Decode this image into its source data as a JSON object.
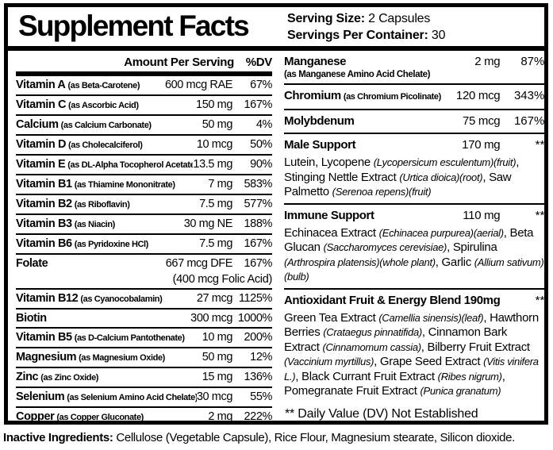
{
  "header": {
    "title": "Supplement Facts",
    "serving_size_label": "Serving Size:",
    "serving_size_value": " 2 Capsules",
    "servings_label": "Servings Per Container:",
    "servings_value": " 30"
  },
  "left_column": {
    "amount_header": "Amount Per Serving",
    "dv_header": "%DV",
    "rows": [
      {
        "name": "Vitamin A",
        "form": "(as Beta-Carotene)",
        "amount": "600 mcg RAE",
        "dv": "67%"
      },
      {
        "name": "Vitamin C",
        "form": "(as Ascorbic Acid)",
        "amount": "150 mg",
        "dv": "167%"
      },
      {
        "name": "Calcium",
        "form": "(as Calcium Carbonate)",
        "amount": "50 mg",
        "dv": "4%"
      },
      {
        "name": "Vitamin D",
        "form": "(as Cholecalciferol)",
        "amount": "10 mcg",
        "dv": "50%"
      },
      {
        "name": "Vitamin E",
        "form": "(as DL-Alpha Tocopherol Acetate)",
        "amount": "13.5 mg",
        "dv": "90%"
      },
      {
        "name": "Vitamin B1",
        "form": "(as Thiamine Mononitrate)",
        "amount": "7 mg",
        "dv": "583%"
      },
      {
        "name": "Vitamin B2",
        "form": "(as Riboflavin)",
        "amount": "7.5 mg",
        "dv": "577%"
      },
      {
        "name": "Vitamin B3",
        "form": "(as Niacin)",
        "amount": "30 mg NE",
        "dv": "188%"
      },
      {
        "name": "Vitamin B6",
        "form": "(as Pyridoxine HCl)",
        "amount": "7.5 mg",
        "dv": "167%"
      },
      {
        "name": "Folate",
        "form": "",
        "amount": "667 mcg DFE",
        "dv": "167%",
        "amount_note": "(400 mcg Folic Acid)"
      },
      {
        "name": "Vitamin B12",
        "form": "(as Cyanocobalamin)",
        "amount": "27 mcg",
        "dv": "1125%"
      },
      {
        "name": "Biotin",
        "form": "",
        "amount": "300 mcg",
        "dv": "1000%"
      },
      {
        "name": "Vitamin B5",
        "form": "(as D-Calcium Pantothenate)",
        "amount": "10 mg",
        "dv": "200%"
      },
      {
        "name": "Magnesium",
        "form": "(as Magnesium Oxide)",
        "amount": "50 mg",
        "dv": "12%"
      },
      {
        "name": "Zinc",
        "form": "(as Zinc Oxide)",
        "amount": "15 mg",
        "dv": "136%"
      },
      {
        "name": "Selenium",
        "form": "(as Selenium Amino Acid Chelate)",
        "amount": "30 mcg",
        "dv": "55%"
      },
      {
        "name": "Copper",
        "form": "(as Copper Gluconate)",
        "amount": "2 mg",
        "dv": "222%"
      }
    ]
  },
  "right_column": {
    "rows": [
      {
        "name": "Manganese",
        "form": "",
        "sub": "(as Manganese Amino Acid Chelate)",
        "amount": "2 mg",
        "dv": "87%"
      },
      {
        "name": "Chromium",
        "form": "(as Chromium Picolinate)",
        "amount": "120 mcg",
        "dv": "343%"
      },
      {
        "name": "Molybdenum",
        "form": "",
        "amount": "75 mcg",
        "dv": "167%"
      },
      {
        "name": "Male Support",
        "form": "",
        "amount": "170 mg",
        "dv": "**",
        "ingredients": [
          {
            "text": "Lutein, Lycopene ",
            "italic": false
          },
          {
            "text": "(Lycopersicum esculentum)(fruit)",
            "italic": true
          },
          {
            "text": ", Stinging Nettle Extract ",
            "italic": false
          },
          {
            "text": "(Urtica dioica)(root)",
            "italic": true
          },
          {
            "text": ", Saw Palmetto ",
            "italic": false
          },
          {
            "text": "(Serenoa repens)(fruit)",
            "italic": true
          }
        ]
      },
      {
        "name": "Immune Support",
        "form": "",
        "amount": "110 mg",
        "dv": "**",
        "ingredients": [
          {
            "text": "Echinacea Extract ",
            "italic": false
          },
          {
            "text": "(Echinacea purpurea)(aerial)",
            "italic": true
          },
          {
            "text": ", Beta Glucan ",
            "italic": false
          },
          {
            "text": "(Saccharomyces cerevisiae)",
            "italic": true
          },
          {
            "text": ", Spirulina ",
            "italic": false
          },
          {
            "text": "(Arthrospira platensis)(whole plant)",
            "italic": true
          },
          {
            "text": ", Garlic ",
            "italic": false
          },
          {
            "text": "(Allium sativum)(bulb)",
            "italic": true
          }
        ]
      },
      {
        "name": "Antioxidant Fruit & Energy Blend 190mg",
        "form": "",
        "amount": "",
        "dv": "**",
        "ingredients": [
          {
            "text": "Green Tea Extract ",
            "italic": false
          },
          {
            "text": "(Camellia sinensis)(leaf)",
            "italic": true
          },
          {
            "text": ", Hawthorn Berries ",
            "italic": false
          },
          {
            "text": "(Crataegus pinnatifida)",
            "italic": true
          },
          {
            "text": ", Cinnamon Bark Extract ",
            "italic": false
          },
          {
            "text": "(Cinnamomum cassia)",
            "italic": true
          },
          {
            "text": ", Bilberry Fruit Extract ",
            "italic": false
          },
          {
            "text": "(Vaccinium myrtillus)",
            "italic": true
          },
          {
            "text": ", Grape Seed Extract ",
            "italic": false
          },
          {
            "text": "(Vitis vinifera L.)",
            "italic": true
          },
          {
            "text": ", Black Currant Fruit Extract ",
            "italic": false
          },
          {
            "text": "(Ribes nigrum)",
            "italic": true
          },
          {
            "text": ", Pomegranate Fruit Extract ",
            "italic": false
          },
          {
            "text": "(Punica granatum)",
            "italic": true
          }
        ]
      }
    ],
    "footnote": "** Daily Value (DV) Not Established"
  },
  "inactive": {
    "label": "Inactive Ingredients:",
    "text": " Cellulose (Vegetable Capsule), Rice Flour, Magnesium stearate, Silicon dioxide."
  },
  "colors": {
    "text": "#000000",
    "background": "#ffffff",
    "rule": "#000000"
  }
}
